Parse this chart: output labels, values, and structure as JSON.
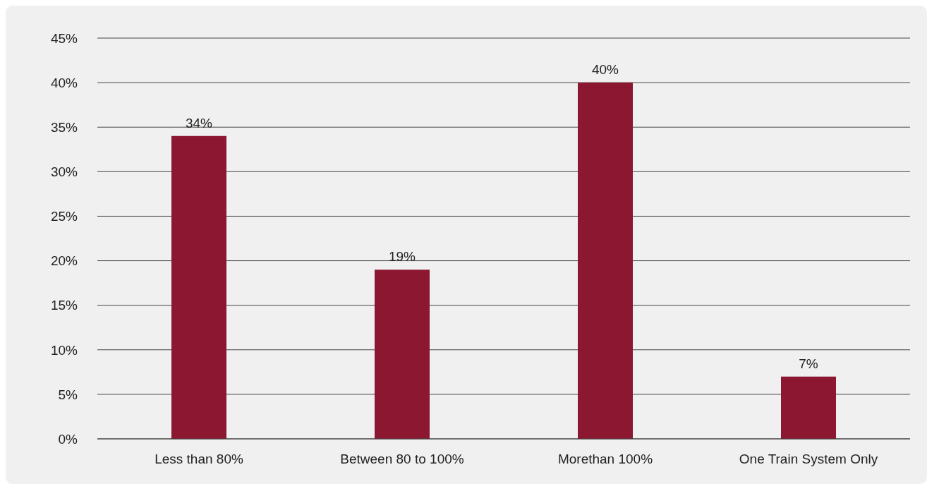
{
  "chart_data": {
    "type": "bar",
    "categories": [
      "Less than 80%",
      "Between 80 to 100%",
      "Morethan 100%",
      "One Train System Only"
    ],
    "values": [
      34,
      19,
      40,
      7
    ],
    "color": "#8b1730",
    "value_labels": [
      "34%",
      "19%",
      "40%",
      "7%"
    ],
    "ylim": [
      0,
      45
    ],
    "yticks": [
      {
        "value": 0,
        "label": "0%"
      },
      {
        "value": 5,
        "label": "5%"
      },
      {
        "value": 10,
        "label": "10%"
      },
      {
        "value": 15,
        "label": "15%"
      },
      {
        "value": 20,
        "label": "20%"
      },
      {
        "value": 25,
        "label": "25%"
      },
      {
        "value": 30,
        "label": "30%"
      },
      {
        "value": 35,
        "label": "35%"
      },
      {
        "value": 40,
        "label": "40%"
      },
      {
        "value": 45,
        "label": "45%"
      }
    ],
    "grid": "y"
  }
}
